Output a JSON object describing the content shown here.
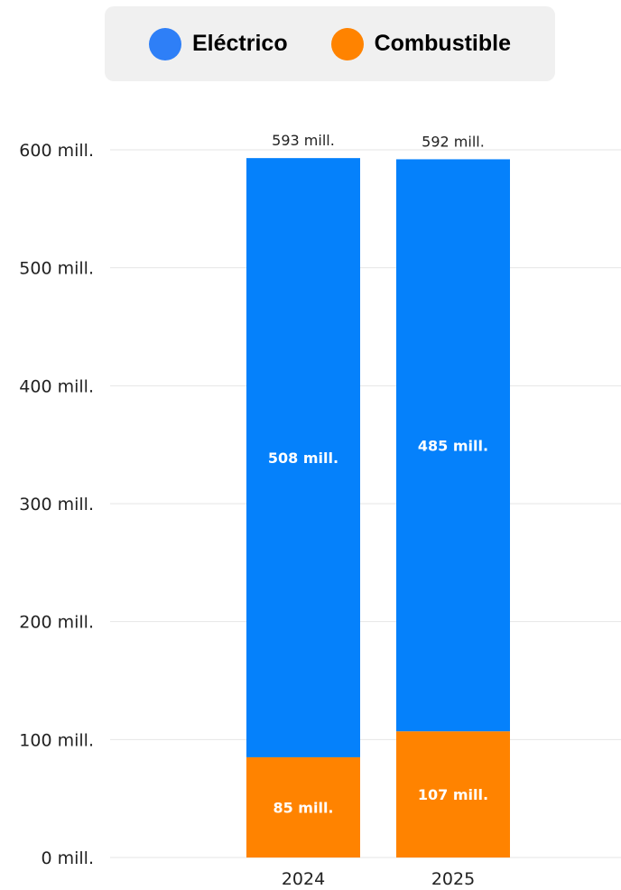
{
  "legend": {
    "items": [
      {
        "label": "Eléctrico",
        "color": "#2e7ff7"
      },
      {
        "label": "Combustible",
        "color": "#ff8300"
      }
    ]
  },
  "chart_data": {
    "type": "bar",
    "stacked": true,
    "categories": [
      "2024",
      "2025"
    ],
    "series": [
      {
        "name": "Combustible",
        "values": [
          85,
          107
        ],
        "labels": [
          "85 mill.",
          "107 mill."
        ],
        "color": "#ff8300"
      },
      {
        "name": "Eléctrico",
        "values": [
          508,
          485
        ],
        "labels": [
          "508 mill.",
          "485 mill."
        ],
        "color": "#0581fb"
      }
    ],
    "totals": [
      593,
      592
    ],
    "total_labels": [
      "593 mill.",
      "592 mill."
    ],
    "yticks": [
      0,
      100,
      200,
      300,
      400,
      500,
      600
    ],
    "ytick_labels": [
      "0 mill.",
      "100 mill.",
      "200 mill.",
      "300 mill.",
      "400 mill.",
      "500 mill.",
      "600 mill."
    ],
    "ylim": [
      0,
      600
    ],
    "grid": true,
    "legend_position": "top"
  }
}
